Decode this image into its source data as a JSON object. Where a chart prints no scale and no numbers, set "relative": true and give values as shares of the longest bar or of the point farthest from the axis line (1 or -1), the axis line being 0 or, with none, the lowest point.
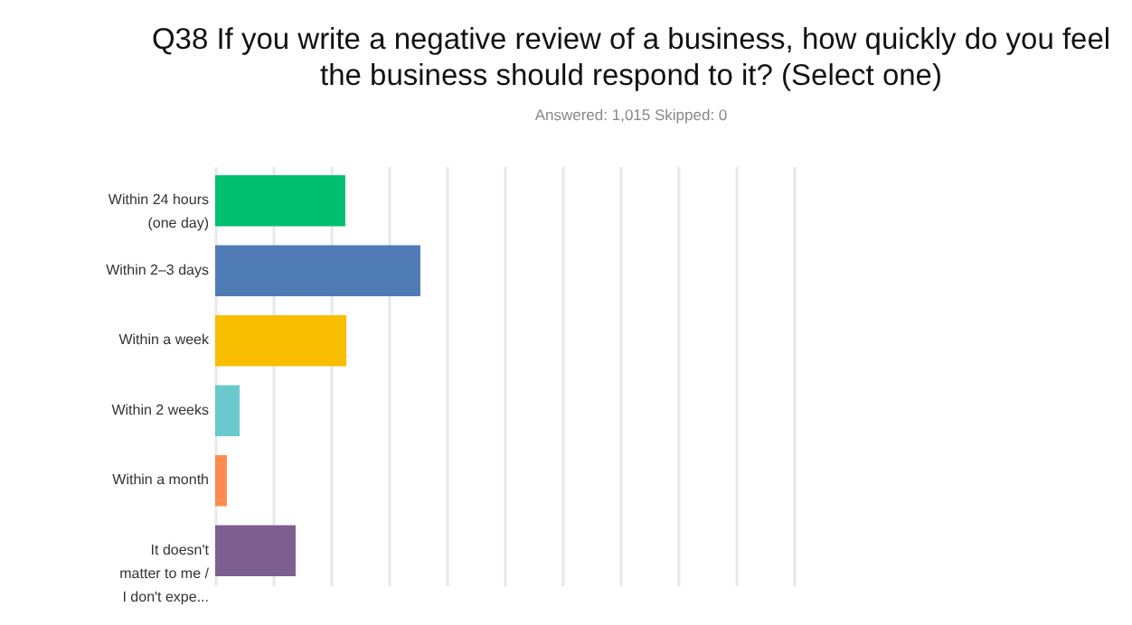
{
  "chart_data": {
    "type": "bar",
    "orientation": "horizontal",
    "relative": true,
    "grid": "x",
    "title": [
      "Q38 If you write a negative review of a business, how quickly do you feel",
      "the business should respond to it? (Select one)"
    ],
    "subtitle": "Answered: 1,015    Skipped: 0",
    "categories": [
      "Within 24 hours (one day)",
      "Within 2–3 days",
      "Within a week",
      "Within 2 weeks",
      "Within a month",
      "It doesn't matter to me / I don't expe..."
    ],
    "values": [
      0.634,
      1,
      0.639,
      0.119,
      0.057,
      0.392
    ],
    "colors": [
      "#00bf6f",
      "#507cb6",
      "#f9be00",
      "#6bc8cd",
      "#ff8b4f",
      "#7d5e90"
    ]
  }
}
